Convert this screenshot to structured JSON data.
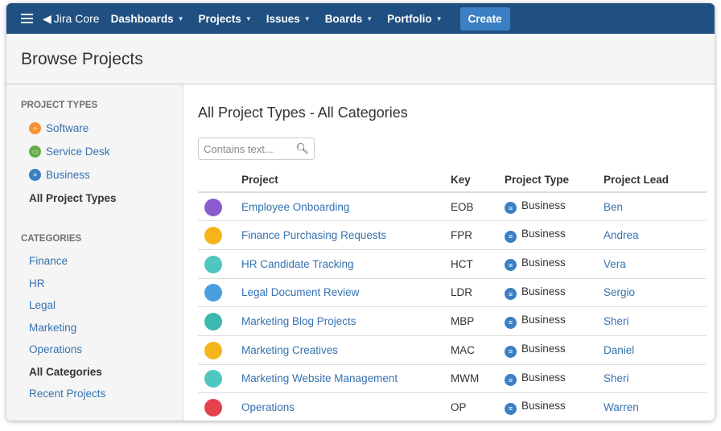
{
  "nav": {
    "logo": "Jira Core",
    "menus": [
      "Dashboards",
      "Projects",
      "Issues",
      "Boards",
      "Portfolio"
    ],
    "create": "Create"
  },
  "page_title": "Browse Projects",
  "sidebar": {
    "types_heading": "PROJECT TYPES",
    "types": [
      {
        "label": "Software",
        "color": "#f79232"
      },
      {
        "label": "Service Desk",
        "color": "#67ab49"
      },
      {
        "label": "Business",
        "color": "#3b7fc4"
      },
      {
        "label": "All Project Types"
      }
    ],
    "categories_heading": "CATEGORIES",
    "categories": [
      "Finance",
      "HR",
      "Legal",
      "Marketing",
      "Operations",
      "All Categories",
      "Recent Projects"
    ]
  },
  "main": {
    "title": "All Project Types - All Categories",
    "search_placeholder": "Contains text...",
    "columns": [
      "Project",
      "Key",
      "Project Type",
      "Project Lead"
    ],
    "rows": [
      {
        "name": "Employee Onboarding",
        "key": "EOB",
        "type": "Business",
        "lead": "Ben",
        "avatar": "#8b5ccf"
      },
      {
        "name": "Finance Purchasing Requests",
        "key": "FPR",
        "type": "Business",
        "lead": "Andrea",
        "avatar": "#f6b41c"
      },
      {
        "name": "HR Candidate Tracking",
        "key": "HCT",
        "type": "Business",
        "lead": "Vera",
        "avatar": "#4fc6c0"
      },
      {
        "name": "Legal Document Review",
        "key": "LDR",
        "type": "Business",
        "lead": "Sergio",
        "avatar": "#4a9fe0"
      },
      {
        "name": "Marketing Blog Projects",
        "key": "MBP",
        "type": "Business",
        "lead": "Sheri",
        "avatar": "#3cb8b0"
      },
      {
        "name": "Marketing Creatives",
        "key": "MAC",
        "type": "Business",
        "lead": "Daniel",
        "avatar": "#f6b41c"
      },
      {
        "name": "Marketing Website Management",
        "key": "MWM",
        "type": "Business",
        "lead": "Sheri",
        "avatar": "#4fc6c0"
      },
      {
        "name": "Operations",
        "key": "OP",
        "type": "Business",
        "lead": "Warren",
        "avatar": "#e5424d"
      }
    ]
  }
}
